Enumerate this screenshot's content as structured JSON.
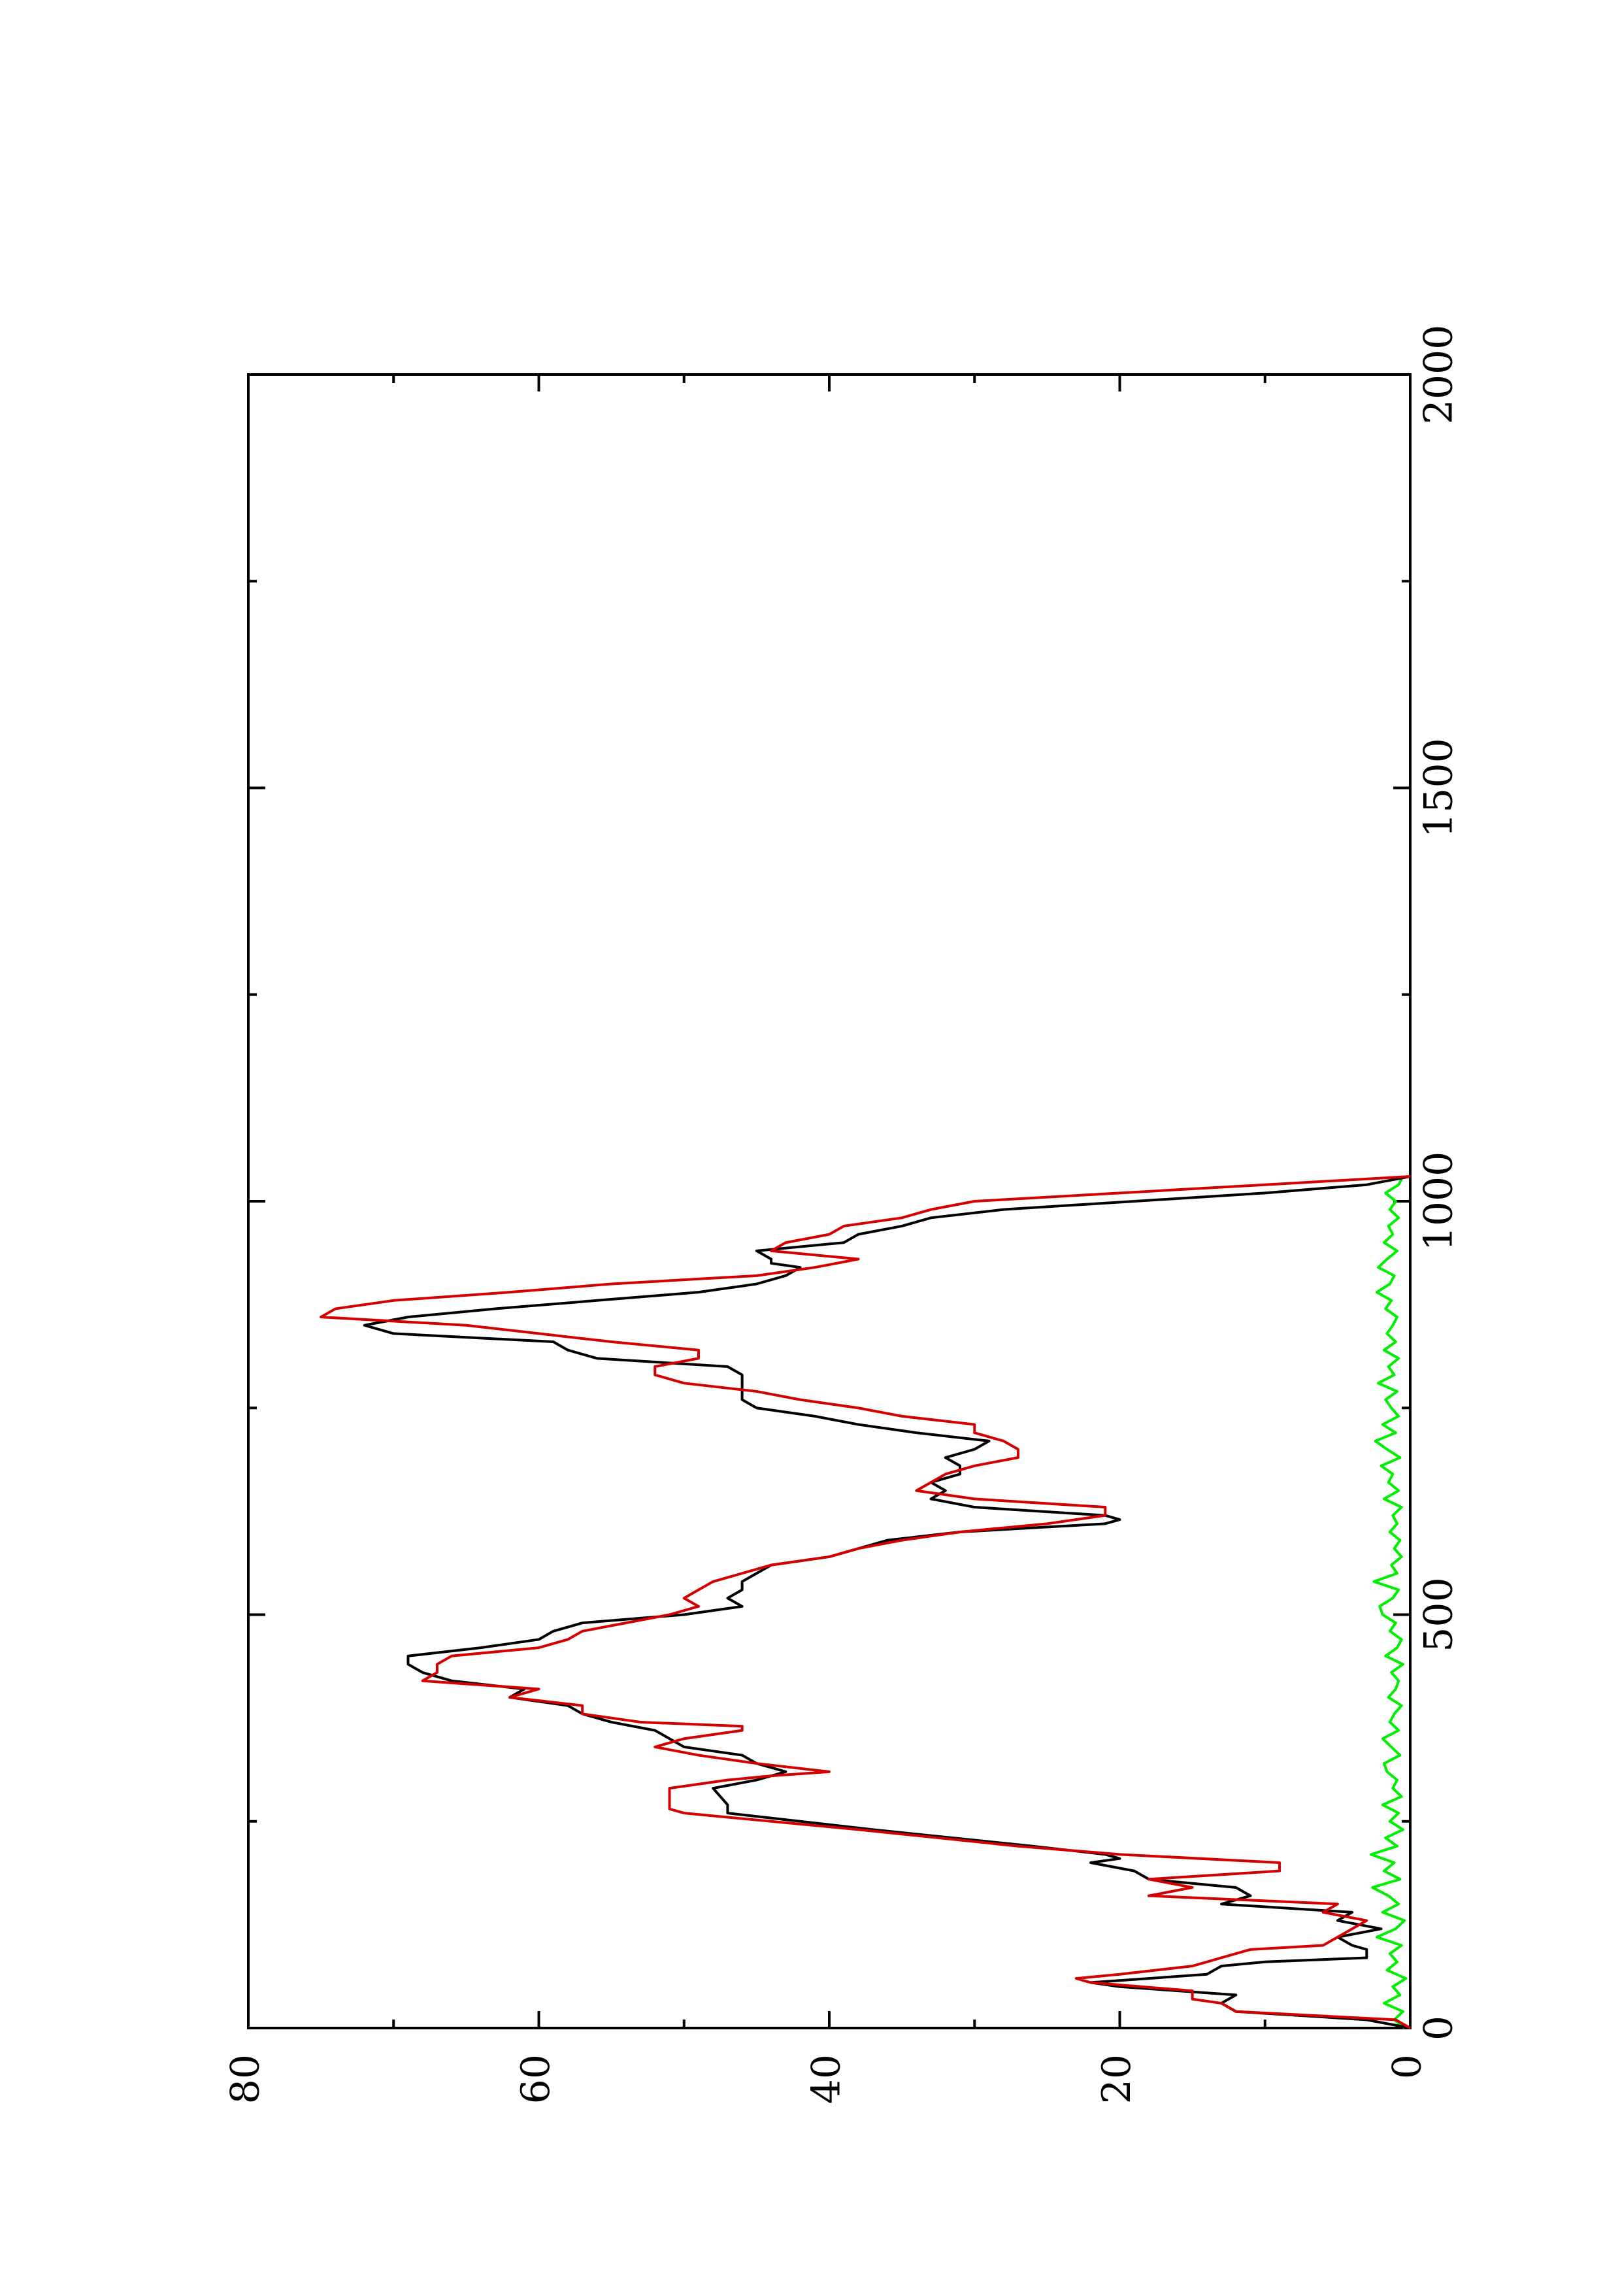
{
  "chart_data": {
    "type": "line",
    "orientation": "rotated-90",
    "title": "",
    "xlabel": "",
    "ylabel": "",
    "xlim": [
      0,
      2000
    ],
    "ylim": [
      0,
      80
    ],
    "x_ticks": [
      0,
      500,
      1000,
      1500,
      2000
    ],
    "y_ticks": [
      0,
      20,
      40,
      60,
      80
    ],
    "x_tick_labels": [
      "0",
      "500",
      "1000",
      "1500",
      "2000"
    ],
    "y_tick_labels": [
      "0",
      "20",
      "40",
      "60",
      "80"
    ],
    "grid": false,
    "legend": "none",
    "series": [
      {
        "color": "#000000",
        "x": [
          0,
          10,
          20,
          30,
          40,
          50,
          55,
          60,
          65,
          75,
          80,
          85,
          95,
          100,
          110,
          120,
          130,
          140,
          150,
          160,
          170,
          180,
          190,
          200,
          205,
          210,
          220,
          240,
          260,
          265,
          270,
          290,
          300,
          310,
          320,
          330,
          340,
          350,
          360,
          370,
          380,
          390,
          400,
          410,
          420,
          430,
          440,
          450,
          460,
          470,
          480,
          490,
          500,
          510,
          520,
          530,
          540,
          550,
          560,
          570,
          580,
          590,
          600,
          605,
          610,
          615,
          620,
          630,
          640,
          650,
          660,
          670,
          680,
          690,
          700,
          710,
          720,
          730,
          740,
          750,
          760,
          770,
          780,
          790,
          800,
          810,
          820,
          830,
          840,
          850,
          860,
          870,
          880,
          890,
          900,
          910,
          920,
          925,
          930,
          940,
          950,
          960,
          970,
          980,
          990,
          1000,
          1010,
          1020,
          1030
        ],
        "y": [
          0,
          3,
          12,
          13,
          12,
          20,
          22,
          18,
          14,
          13,
          10,
          3,
          3,
          4,
          5,
          2,
          5,
          4,
          13,
          11,
          12,
          18,
          19,
          22,
          20,
          21,
          26,
          37,
          47,
          47,
          47,
          48,
          45,
          43,
          45,
          46,
          50,
          51,
          52,
          55,
          57,
          58,
          62,
          61,
          66,
          68,
          69,
          69,
          64,
          60,
          59,
          57,
          50,
          46,
          47,
          46,
          46,
          45,
          44,
          40,
          38,
          36,
          31,
          26,
          21,
          20,
          21,
          30,
          33,
          32,
          33,
          31,
          31,
          32,
          30,
          29,
          34,
          38,
          41,
          45,
          46,
          46,
          46,
          46,
          47,
          56,
          58,
          59,
          70,
          72,
          69,
          63,
          56,
          49,
          45,
          43,
          42,
          44,
          44,
          45,
          39,
          38,
          35,
          33,
          28,
          19,
          10,
          3,
          0
        ]
      },
      {
        "color": "#d40000",
        "x": [
          0,
          10,
          20,
          30,
          35,
          45,
          55,
          60,
          65,
          75,
          85,
          95,
          100,
          110,
          120,
          130,
          140,
          150,
          160,
          170,
          180,
          190,
          200,
          210,
          220,
          240,
          260,
          265,
          270,
          290,
          300,
          305,
          310,
          320,
          330,
          340,
          350,
          360,
          365,
          370,
          380,
          390,
          400,
          410,
          420,
          430,
          440,
          450,
          460,
          470,
          480,
          490,
          500,
          510,
          520,
          530,
          540,
          550,
          560,
          570,
          580,
          590,
          600,
          610,
          620,
          630,
          640,
          650,
          660,
          670,
          680,
          690,
          700,
          710,
          720,
          730,
          740,
          750,
          760,
          770,
          780,
          790,
          800,
          810,
          820,
          830,
          840,
          850,
          860,
          870,
          880,
          890,
          900,
          905,
          910,
          920,
          930,
          940,
          950,
          960,
          970,
          980,
          990,
          1000,
          1010,
          1020,
          1030
        ],
        "y": [
          0,
          1,
          12,
          13,
          15,
          15,
          22,
          23,
          20,
          15,
          13,
          11,
          6,
          5,
          4,
          3,
          6,
          5,
          18,
          15,
          18,
          9,
          9,
          20,
          27,
          38,
          50,
          51,
          51,
          51,
          47,
          44,
          40,
          45,
          49,
          52,
          50,
          46,
          46,
          53,
          57,
          57,
          62,
          60,
          68,
          67,
          67,
          66,
          60,
          58,
          57,
          54,
          51,
          49,
          50,
          49,
          48,
          46,
          44,
          40,
          38,
          35,
          31,
          25,
          21,
          21,
          30,
          34,
          33,
          32,
          30,
          27,
          27,
          28,
          30,
          30,
          35,
          38,
          42,
          45,
          50,
          52,
          52,
          49,
          49,
          55,
          60,
          65,
          75,
          74,
          70,
          62,
          55,
          50,
          45,
          41,
          38,
          44,
          43,
          40,
          39,
          35,
          33,
          30,
          20,
          10,
          0
        ]
      },
      {
        "color": "#00ee00",
        "x": [
          0,
          10,
          20,
          30,
          40,
          50,
          60,
          70,
          80,
          90,
          100,
          110,
          120,
          130,
          140,
          150,
          160,
          170,
          180,
          190,
          200,
          210,
          220,
          230,
          240,
          250,
          260,
          270,
          280,
          290,
          300,
          310,
          320,
          330,
          340,
          350,
          360,
          370,
          380,
          390,
          400,
          410,
          420,
          430,
          440,
          450,
          460,
          470,
          480,
          490,
          500,
          510,
          520,
          530,
          540,
          550,
          560,
          570,
          580,
          590,
          600,
          610,
          620,
          630,
          640,
          650,
          660,
          670,
          680,
          690,
          700,
          710,
          720,
          730,
          740,
          750,
          760,
          770,
          780,
          790,
          800,
          810,
          820,
          830,
          840,
          850,
          860,
          870,
          880,
          890,
          900,
          910,
          920,
          930,
          940,
          950,
          960,
          970,
          980,
          990,
          1000,
          1010,
          1020,
          1030
        ],
        "y": [
          0.4,
          1.1,
          0.5,
          1.8,
          0.7,
          1.2,
          0.3,
          1.6,
          0.9,
          1.4,
          0.6,
          2.3,
          1.0,
          0.4,
          1.9,
          0.8,
          1.5,
          2.6,
          0.7,
          1.8,
          1.1,
          2.7,
          0.9,
          1.7,
          0.5,
          1.4,
          0.8,
          1.9,
          0.6,
          1.2,
          0.9,
          1.6,
          1.8,
          0.7,
          1.3,
          1.9,
          0.8,
          1.4,
          1.1,
          0.6,
          1.5,
          1.0,
          0.8,
          1.3,
          0.5,
          1.7,
          0.9,
          0.6,
          1.4,
          1.0,
          1.9,
          2.1,
          1.2,
          0.8,
          2.5,
          0.9,
          1.3,
          0.6,
          1.1,
          0.7,
          1.4,
          0.9,
          1.2,
          0.6,
          1.8,
          0.8,
          1.5,
          1.2,
          2.0,
          0.7,
          1.6,
          2.4,
          1.0,
          1.9,
          0.8,
          1.3,
          1.7,
          0.9,
          2.2,
          1.1,
          1.5,
          0.8,
          1.8,
          1.0,
          1.6,
          1.2,
          0.9,
          1.7,
          1.3,
          2.3,
          1.4,
          1.1,
          2.2,
          1.6,
          0.9,
          1.8,
          1.2,
          1.5,
          0.8,
          1.4,
          1.0,
          1.7,
          0.8,
          0.5
        ]
      }
    ]
  }
}
